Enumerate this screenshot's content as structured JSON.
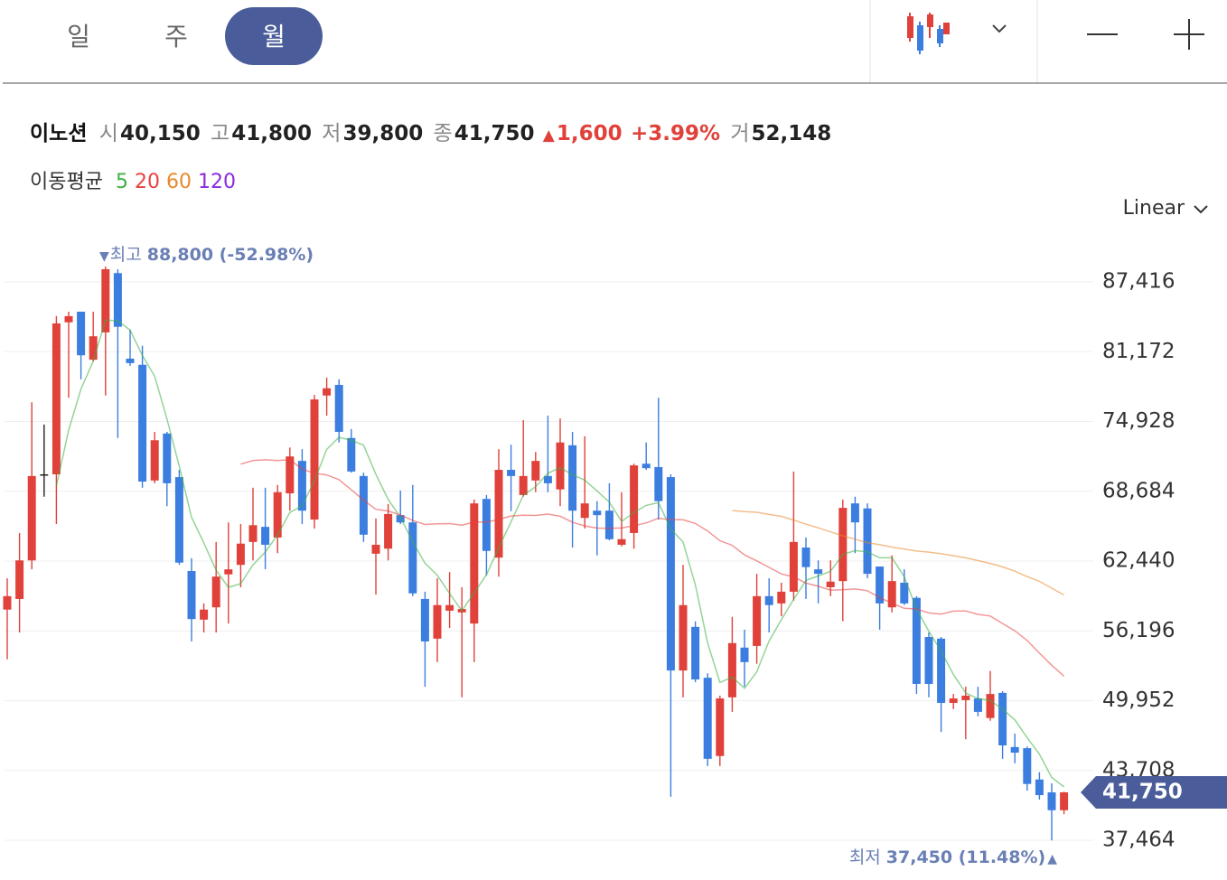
{
  "tabs": [
    "일",
    "주",
    "월"
  ],
  "active_tab": "월",
  "summary": {
    "name": "이노션",
    "open_label": "시",
    "open": "40,150",
    "high_label": "고",
    "high": "41,800",
    "low_label": "저",
    "low": "39,800",
    "close_label": "종",
    "close": "41,750",
    "change_arrow": "▲",
    "change": "1,600",
    "change_pct": "+3.99%",
    "volume_label": "거",
    "volume": "52,148"
  },
  "scale_selector": "Linear",
  "chart_data": {
    "type": "candlestick",
    "up_color": "#e0413a",
    "down_color": "#3b7ee0",
    "moving_average": {
      "label": "이동평균",
      "periods": [
        5,
        20,
        60,
        120
      ],
      "colors": [
        "#3cb043",
        "#e8423f",
        "#e8892b",
        "#8a2be2"
      ]
    },
    "open": [
      58100,
      59050,
      62500,
      70200,
      70200,
      83800,
      84750,
      80450,
      82900,
      88200,
      80550,
      80000,
      69650,
      73850,
      69950,
      61550,
      57200,
      58300,
      61250,
      62100,
      64150,
      65500,
      64550,
      68500,
      71400,
      66150,
      77250,
      78200,
      73450,
      70050,
      63100,
      63550,
      66550,
      65900,
      59050,
      55500,
      58000,
      57850,
      56850,
      68000,
      62750,
      70600,
      68350,
      69650,
      70050,
      68850,
      72800,
      66300,
      66950,
      66950,
      63900,
      64950,
      71150,
      70850,
      69950,
      52650,
      56550,
      52000,
      45000,
      50250,
      54700,
      54850,
      59300,
      58650,
      59700,
      63650,
      61700,
      60100,
      60650,
      67600,
      67150,
      61950,
      58300,
      60500,
      59150,
      55650,
      55500,
      49750,
      50000,
      50150,
      48400,
      50650,
      45800,
      45700,
      42900,
      41750,
      40150
    ],
    "high": [
      60900,
      64950,
      76650,
      74650,
      84350,
      84750,
      84750,
      84750,
      88800,
      88550,
      83150,
      81700,
      74000,
      74000,
      70600,
      62700,
      58650,
      64150,
      65900,
      65750,
      69000,
      69000,
      69250,
      72600,
      72450,
      77300,
      78850,
      78700,
      74250,
      70350,
      66250,
      67550,
      68750,
      69250,
      59700,
      60900,
      61450,
      60100,
      67950,
      68350,
      72450,
      72850,
      75050,
      72200,
      75450,
      75200,
      74000,
      73600,
      67800,
      69400,
      68600,
      71150,
      73050,
      77050,
      70200,
      62100,
      57050,
      52400,
      50400,
      57450,
      56300,
      61300,
      60900,
      60500,
      70450,
      64550,
      62500,
      62500,
      67950,
      68200,
      67600,
      61950,
      62950,
      61700,
      59300,
      56050,
      55650,
      50550,
      51200,
      51200,
      52600,
      50800,
      47000,
      45850,
      43550,
      42550,
      41800
    ],
    "low": [
      53650,
      56050,
      61700,
      68200,
      65750,
      77050,
      78700,
      80300,
      77250,
      73450,
      79900,
      69000,
      69400,
      67350,
      62100,
      55250,
      56050,
      56050,
      56850,
      60100,
      62500,
      61700,
      63150,
      66950,
      65750,
      65350,
      75450,
      73050,
      70350,
      64150,
      59450,
      62500,
      65750,
      59300,
      51200,
      53400,
      56450,
      50250,
      53400,
      61150,
      61050,
      66900,
      68200,
      68600,
      68600,
      67350,
      63650,
      65350,
      62950,
      64300,
      63750,
      63550,
      70600,
      66150,
      41350,
      50250,
      51600,
      44100,
      44100,
      48950,
      51200,
      53250,
      56050,
      57500,
      58900,
      59050,
      58650,
      59300,
      57050,
      63150,
      60900,
      56300,
      57850,
      58500,
      50550,
      50250,
      47150,
      49200,
      46500,
      48550,
      48150,
      44750,
      44350,
      41900,
      41100,
      37450,
      39800
    ],
    "close": [
      59300,
      62500,
      70050,
      70200,
      83700,
      84350,
      80850,
      82550,
      88550,
      83400,
      80150,
      69550,
      73250,
      69400,
      62300,
      57250,
      58100,
      61050,
      61700,
      64000,
      65650,
      63900,
      68600,
      71800,
      66950,
      76900,
      77900,
      74000,
      70450,
      64800,
      63900,
      66650,
      65900,
      59550,
      55250,
      58500,
      58500,
      58150,
      67600,
      63350,
      70600,
      70050,
      70050,
      71400,
      69400,
      73050,
      66950,
      67600,
      66550,
      64400,
      64400,
      71000,
      70750,
      67800,
      52650,
      58500,
      51850,
      44750,
      50150,
      55100,
      53400,
      59300,
      58500,
      59700,
      64150,
      61900,
      61300,
      60600,
      67200,
      65900,
      61300,
      58650,
      60650,
      58650,
      51450,
      51450,
      49750,
      50150,
      50400,
      48950,
      50550,
      45950,
      45300,
      42500,
      41500,
      40150,
      41750
    ],
    "ylim": [
      37464,
      87416
    ],
    "yticks": [
      {
        "value": 87416,
        "label": "87,416"
      },
      {
        "value": 81172,
        "label": "81,172"
      },
      {
        "value": 74928,
        "label": "74,928"
      },
      {
        "value": 68684,
        "label": "68,684"
      },
      {
        "value": 62440,
        "label": "62,440"
      },
      {
        "value": 56196,
        "label": "56,196"
      },
      {
        "value": 49952,
        "label": "49,952"
      },
      {
        "value": 43708,
        "label": "43,708"
      },
      {
        "value": 37464,
        "label": "37,464"
      }
    ],
    "grid": true,
    "last_price": {
      "value": 41750,
      "label": "41,750"
    },
    "max_annotation": {
      "marker": "▼",
      "label": "최고",
      "value": "88,800 (-52.98%)"
    },
    "min_annotation": {
      "label": "최저",
      "value": "37,450 (11.48%)",
      "marker": "▲"
    }
  }
}
